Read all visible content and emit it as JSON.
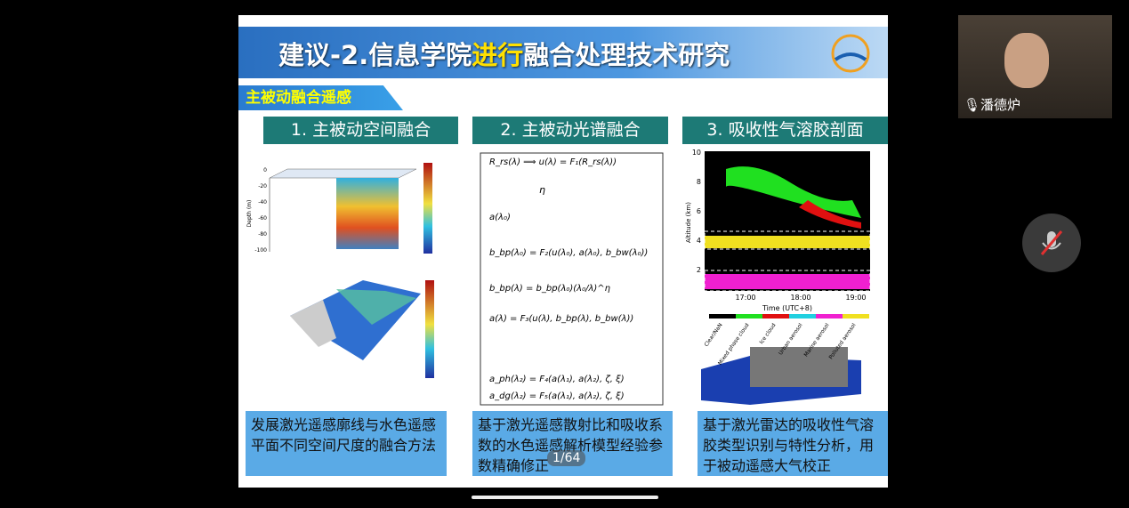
{
  "slide": {
    "title_parts": [
      "建议-2.信息学院",
      "进行",
      "融合处理技术研究"
    ],
    "section": "主被动融合遥感",
    "panels": [
      {
        "heading": "1. 主被动空间融合",
        "caption": "发展激光遥感廓线与水色遥感平面不同空间尺度的融合方法"
      },
      {
        "heading": "2. 主被动光谱融合",
        "caption": "基于激光遥感散射比和吸收系数的水色遥感解析模型经验参数精确修正"
      },
      {
        "heading": "3. 吸收性气溶胶剖面",
        "caption": "基于激光雷达的吸收性气溶胶类型识别与特性分析，用于被动遥感大气校正"
      }
    ],
    "figure1": {
      "y_label": "Depth (m)",
      "depth_ticks": [
        "0",
        "-20",
        "-40",
        "-60",
        "-80",
        "-100"
      ]
    },
    "formulas": [
      "R_rs(λ) ⟹ u(λ) = F₁(R_rs(λ))",
      "η",
      "a(λ₀)",
      "b_bp(λ₀) = F₂(u(λ₀), a(λ₀), b_bw(λ₀))",
      "b_bp(λ) = b_bp(λ₀)(λ₀/λ)^η",
      "a(λ) = F₃(u(λ), b_bp(λ), b_bw(λ))",
      "a_ph(λ₂) = F₄(a(λ₁), a(λ₂), ζ, ξ)",
      "a_dg(λ₂) = F₅(a(λ₁), a(λ₂), ζ, ξ)"
    ],
    "lidar": {
      "y_label": "Altitude (km)",
      "x_label": "Time (UTC+8)",
      "y_ticks": [
        "10",
        "8",
        "6",
        "4",
        "2"
      ],
      "x_ticks": [
        "17:00",
        "18:00",
        "19:00"
      ],
      "legend": [
        "Clear/NaN",
        "Mixed phase cloud",
        "Ice cloud",
        "Urban aerosol",
        "Marine aerosol",
        "Polluted aerosol"
      ]
    }
  },
  "page_indicator": "1/64",
  "participant": {
    "name": "潘德炉"
  }
}
